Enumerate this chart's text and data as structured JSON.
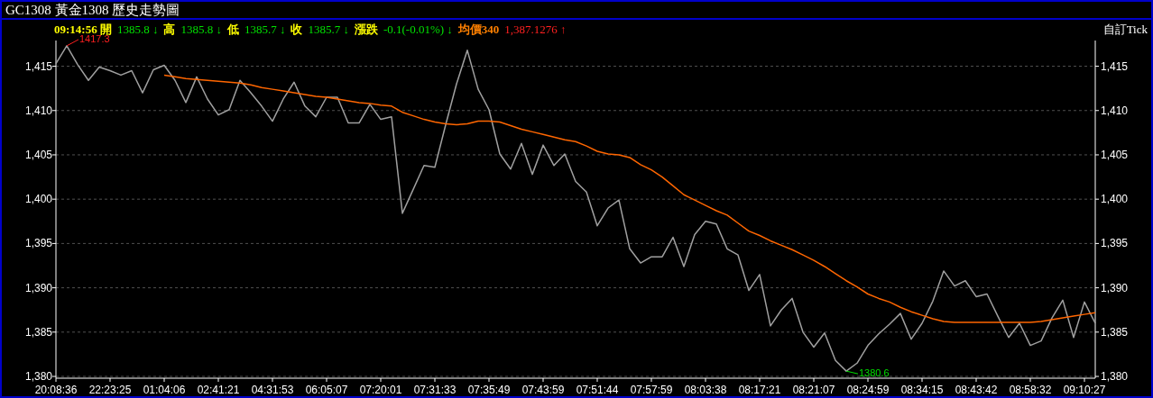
{
  "chart_data": {
    "type": "line",
    "title": "GC1308 黃金1308  歷史走勢圖",
    "annotations": [
      "09:14:56 開",
      "1385.8 ↓",
      "高",
      "1385.8 ↓",
      "低",
      "1385.7 ↓",
      "收",
      "1385.7 ↓",
      "漲跌",
      "-0.1(-0.01%) ↓",
      "均價340",
      "1,387.1276 ↑",
      "自訂Tick",
      "1417.3",
      "1380.6"
    ],
    "categories": [
      "20:08:36",
      null,
      null,
      null,
      null,
      "22:23:25",
      null,
      null,
      null,
      null,
      "01:04:06",
      null,
      null,
      null,
      null,
      "02:41:21",
      null,
      null,
      null,
      null,
      "04:31:53",
      null,
      null,
      null,
      null,
      "06:05:07",
      null,
      null,
      null,
      null,
      "07:20:01",
      null,
      null,
      null,
      null,
      "07:31:33",
      null,
      null,
      null,
      null,
      "07:35:49",
      null,
      null,
      null,
      null,
      "07:43:59",
      null,
      null,
      null,
      null,
      "07:51:44",
      null,
      null,
      null,
      null,
      "07:57:59",
      null,
      null,
      null,
      null,
      "08:03:38",
      null,
      null,
      null,
      null,
      "08:17:21",
      null,
      null,
      null,
      null,
      "08:21:07",
      null,
      null,
      null,
      null,
      "08:24:59",
      null,
      null,
      null,
      null,
      "08:34:15",
      null,
      null,
      null,
      null,
      "08:43:42",
      null,
      null,
      null,
      null,
      "08:58:32",
      null,
      null,
      null,
      null,
      "09:10:27",
      null
    ],
    "series": [
      {
        "color": "#a0a0a0",
        "values": [
          1415.3,
          1417.3,
          1415.2,
          1413.4,
          1414.9,
          1414.5,
          1414.0,
          1414.5,
          1412.0,
          1414.6,
          1415.1,
          1413.4,
          1410.9,
          1413.8,
          1411.3,
          1409.5,
          1410.1,
          1413.4,
          1412.0,
          1410.5,
          1408.8,
          1411.3,
          1413.2,
          1410.5,
          1409.3,
          1411.5,
          1411.5,
          1408.6,
          1408.6,
          1410.7,
          1409.0,
          1409.3,
          1398.4,
          1401.1,
          1403.8,
          1403.6,
          1408.4,
          1413.0,
          1416.8,
          1412.4,
          1410.1,
          1405.1,
          1403.4,
          1406.3,
          1402.8,
          1406.1,
          1403.8,
          1405.1,
          1402.0,
          1400.8,
          1397.0,
          1399.0,
          1399.9,
          1394.4,
          1392.8,
          1393.5,
          1393.5,
          1395.7,
          1392.4,
          1396.0,
          1397.5,
          1397.2,
          1394.4,
          1393.7,
          1389.7,
          1391.5,
          1385.7,
          1387.5,
          1388.8,
          1385.0,
          1383.3,
          1384.9,
          1381.8,
          1380.6,
          1381.5,
          1383.5,
          1384.8,
          1385.9,
          1387.1,
          1384.2,
          1386.0,
          1388.5,
          1391.9,
          1390.2,
          1390.8,
          1389.0,
          1389.3,
          1386.8,
          1384.4,
          1386.0,
          1383.5,
          1384.0,
          1386.6,
          1388.6,
          1384.4,
          1388.4,
          1386.0
        ]
      },
      {
        "color": "#ff6600",
        "values": [
          null,
          null,
          null,
          null,
          null,
          null,
          null,
          null,
          null,
          null,
          1414.0,
          1413.8,
          1413.6,
          1413.5,
          1413.4,
          1413.3,
          1413.2,
          1413.1,
          1412.9,
          1412.6,
          1412.4,
          1412.2,
          1412.0,
          1411.8,
          1411.6,
          1411.5,
          1411.3,
          1411.1,
          1410.9,
          1410.8,
          1410.6,
          1410.5,
          1409.8,
          1409.4,
          1409.0,
          1408.7,
          1408.5,
          1408.4,
          1408.5,
          1408.8,
          1408.8,
          1408.7,
          1408.3,
          1407.9,
          1407.6,
          1407.3,
          1407.0,
          1406.7,
          1406.5,
          1406.0,
          1405.4,
          1405.1,
          1405.0,
          1404.7,
          1403.9,
          1403.3,
          1402.5,
          1401.5,
          1400.5,
          1399.9,
          1399.3,
          1398.7,
          1398.2,
          1397.3,
          1396.4,
          1395.9,
          1395.3,
          1394.8,
          1394.3,
          1393.7,
          1393.1,
          1392.4,
          1391.6,
          1390.8,
          1390.1,
          1389.3,
          1388.8,
          1388.4,
          1387.8,
          1387.3,
          1386.9,
          1386.5,
          1386.2,
          1386.1,
          1386.1,
          1386.1,
          1386.1,
          1386.1,
          1386.1,
          1386.1,
          1386.1,
          1386.2,
          1386.4,
          1386.6,
          1386.8,
          1387.0,
          1387.2
        ]
      }
    ],
    "ylim": [
      1379.8,
      1417.9
    ],
    "yticks": [
      {
        "value": 1380,
        "label": "1,380"
      },
      {
        "value": 1385,
        "label": "1,385"
      },
      {
        "value": 1390,
        "label": "1,390"
      },
      {
        "value": 1395,
        "label": "1,395"
      },
      {
        "value": 1400,
        "label": "1,400"
      },
      {
        "value": 1405,
        "label": "1,405"
      },
      {
        "value": 1410,
        "label": "1,410"
      },
      {
        "value": 1415,
        "label": "1,415"
      }
    ],
    "y2lim": [
      1379.8,
      1417.9
    ],
    "y2ticks": [
      {
        "value": 1380,
        "label": "1,380"
      },
      {
        "value": 1385,
        "label": "1,385"
      },
      {
        "value": 1390,
        "label": "1,390"
      },
      {
        "value": 1395,
        "label": "1,395"
      },
      {
        "value": 1400,
        "label": "1,400"
      },
      {
        "value": 1405,
        "label": "1,405"
      },
      {
        "value": 1410,
        "label": "1,410"
      },
      {
        "value": 1415,
        "label": "1,415"
      }
    ],
    "grid": "y",
    "marker": "none",
    "line_style": "solid"
  }
}
